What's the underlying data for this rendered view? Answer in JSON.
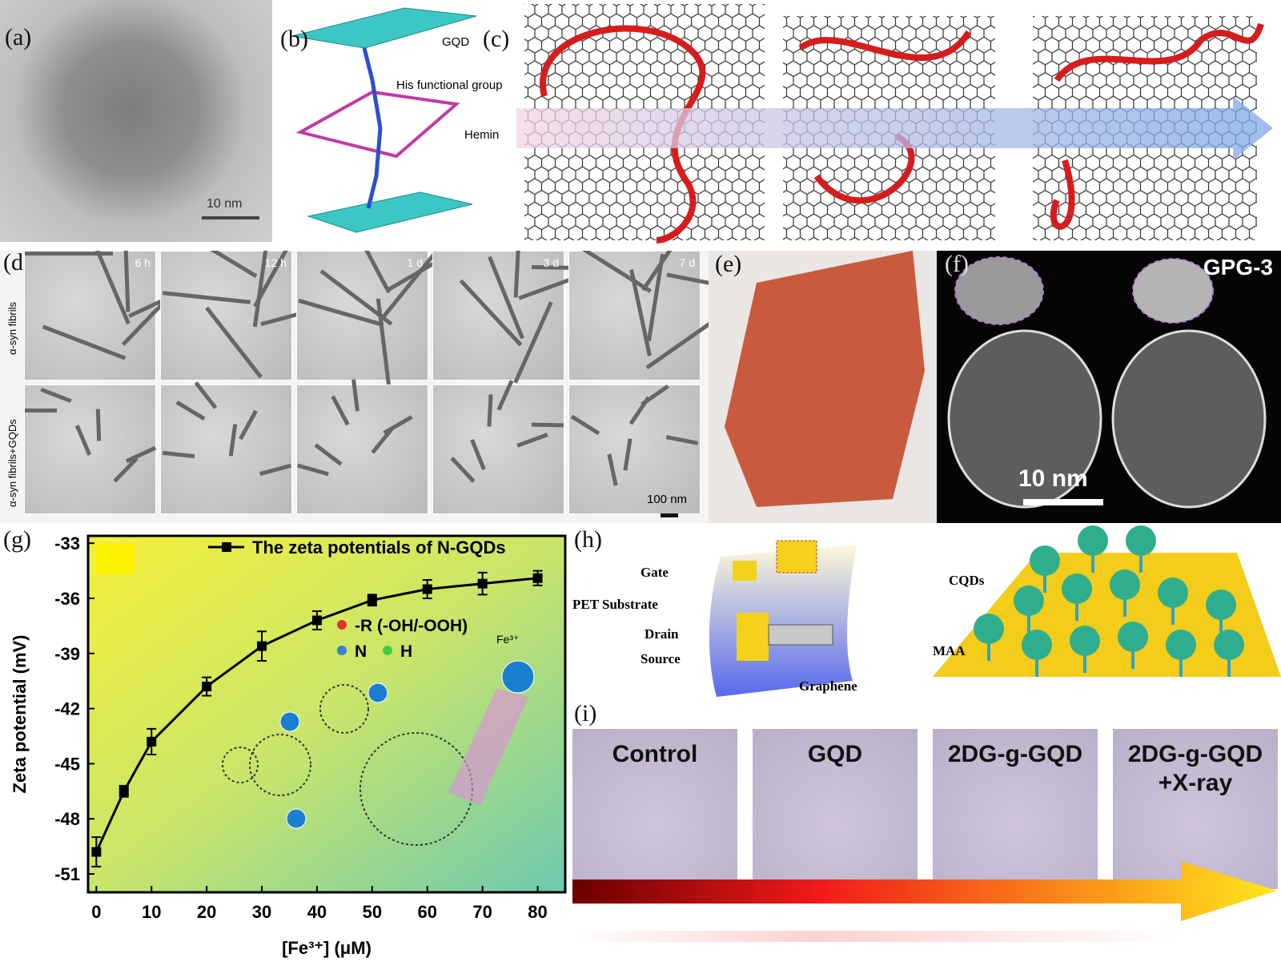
{
  "panels": {
    "a": {
      "label": "(a)",
      "scale": "10 nm"
    },
    "b": {
      "label": "(b)",
      "texts": [
        "GQD",
        "His functional group",
        "Hemin"
      ]
    },
    "c": {
      "label": "(c)"
    },
    "d": {
      "label": "(d)",
      "times": [
        "6 h",
        "12 h",
        "1 d",
        "3 d",
        "7 d"
      ],
      "rows": [
        "α-syn fibrils",
        "α-syn fibrils+GQDs"
      ],
      "scale": "100 nm"
    },
    "e": {
      "label": "(e)"
    },
    "f": {
      "label": "(f)",
      "name": "GPG-3",
      "scale": "10 nm"
    },
    "h": {
      "label": "(h)",
      "texts": [
        "Gate",
        "PET Substrate",
        "Drain",
        "Source",
        "Graphene",
        "CQDs",
        "MAA"
      ]
    },
    "i": {
      "label": "(i)",
      "cells": [
        "Control",
        "GQD",
        "2DG-g-GQD",
        "2DG-g-GQD",
        "+X-ray"
      ]
    }
  },
  "chart_data": {
    "type": "line",
    "label": "(g)",
    "x_label": "[Fe³⁺] (μM)",
    "y_label": "Zeta potential (mV)",
    "series": [
      {
        "name": "The zeta potentials of N-GQDs",
        "color": "#000000",
        "x": [
          0,
          5,
          10,
          20,
          30,
          40,
          50,
          60,
          70,
          80
        ],
        "values": [
          -49.8,
          -46.5,
          -43.8,
          -40.8,
          -38.6,
          -37.2,
          -36.1,
          -35.5,
          -35.2,
          -34.9
        ],
        "errors": [
          0.8,
          0.3,
          0.7,
          0.5,
          0.8,
          0.5,
          0.3,
          0.5,
          0.6,
          0.4
        ]
      }
    ],
    "xlim": [
      -1.5,
      85
    ],
    "ylim": [
      -52,
      -32.6
    ],
    "xticks": [
      0,
      10,
      20,
      30,
      40,
      50,
      60,
      70,
      80
    ],
    "yticks": [
      -33,
      -36,
      -39,
      -42,
      -45,
      -48,
      -51
    ],
    "annotations": [
      "-R (-OH/-OOH)",
      "N",
      "H",
      "Fe³⁺"
    ],
    "legend": "top-right"
  }
}
